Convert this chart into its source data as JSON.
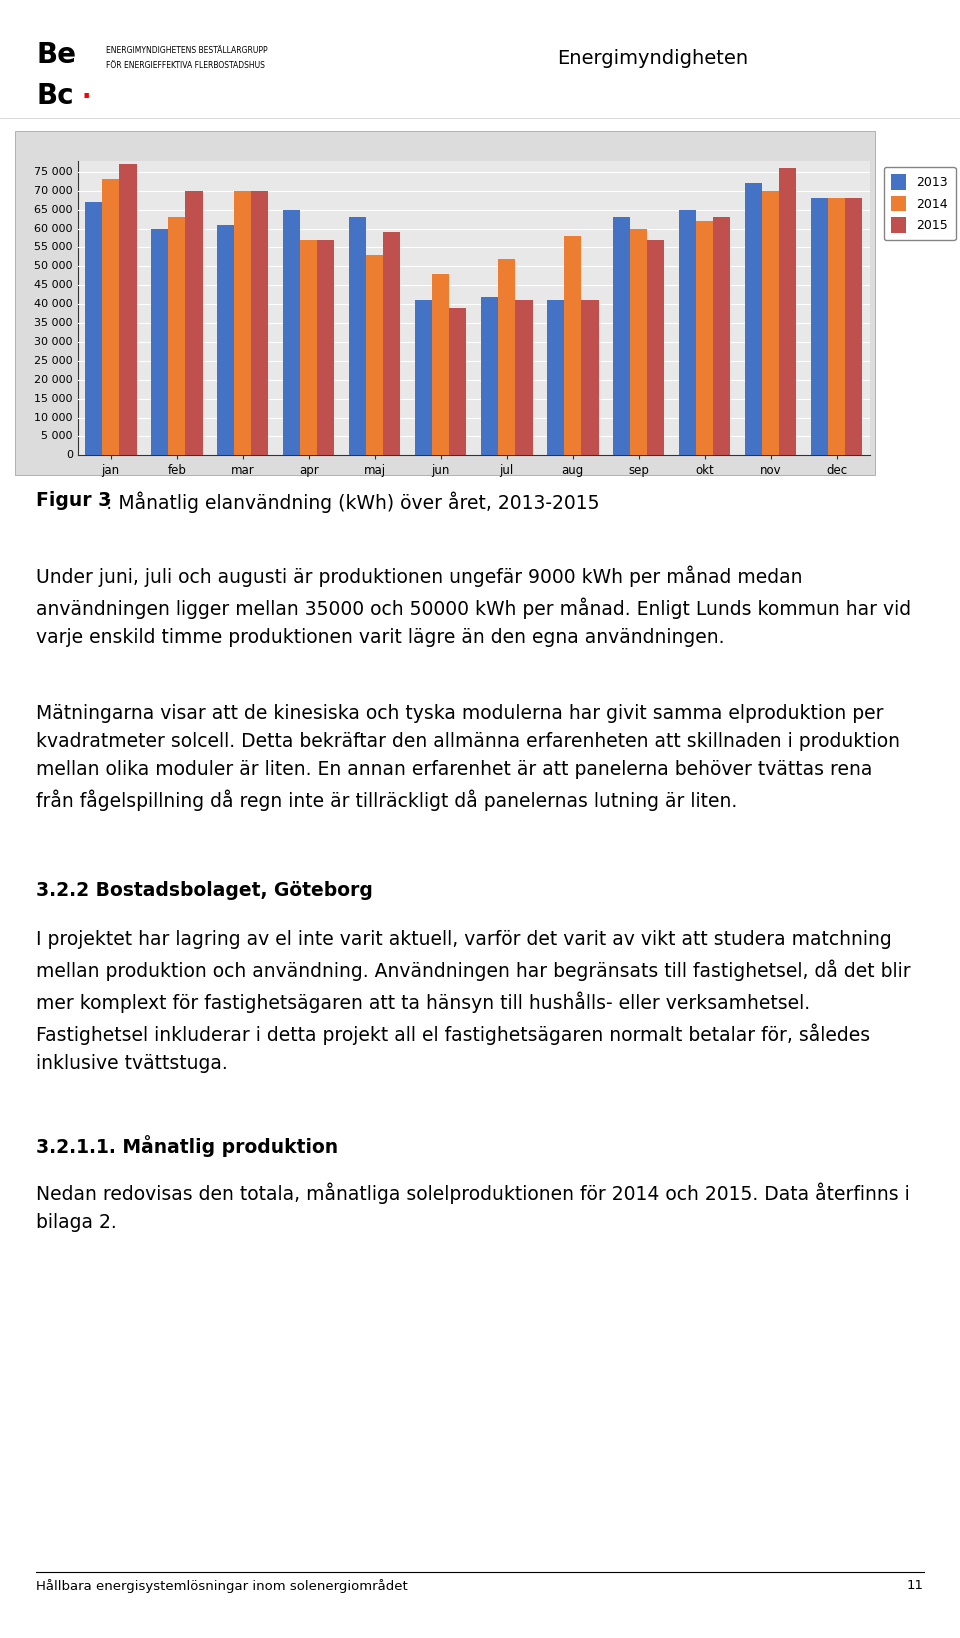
{
  "months": [
    "jan",
    "feb",
    "mar",
    "apr",
    "maj",
    "jun",
    "jul",
    "aug",
    "sep",
    "okt",
    "nov",
    "dec"
  ],
  "series_2013": [
    67000,
    60000,
    61000,
    65000,
    63000,
    41000,
    42000,
    41000,
    63000,
    65000,
    72000,
    68000
  ],
  "series_2014": [
    73000,
    63000,
    70000,
    57000,
    53000,
    48000,
    52000,
    58000,
    60000,
    62000,
    70000,
    68000
  ],
  "series_2015": [
    77000,
    70000,
    70000,
    57000,
    59000,
    39000,
    41000,
    41000,
    57000,
    63000,
    76000,
    68000
  ],
  "color_2013": "#4472C4",
  "color_2014": "#ED7D31",
  "color_2015": "#C0504D",
  "ylim": [
    0,
    78000
  ],
  "yticks": [
    0,
    5000,
    10000,
    15000,
    20000,
    25000,
    30000,
    35000,
    40000,
    45000,
    50000,
    55000,
    60000,
    65000,
    70000,
    75000
  ],
  "chart_outer_bg": "#DCDCDC",
  "plot_inner_bg": "#E8E8E8",
  "footer_text": "Hållbara energisystemlösningar inom solenergiområdet",
  "footer_page": "11",
  "bebo_line1": "ENERGIMYNDIGHETENS BESTÄLLARGRUPP",
  "bebo_line2": "FÖR ENERGIEFFEKTIVA FLERBOSTADSHUS"
}
